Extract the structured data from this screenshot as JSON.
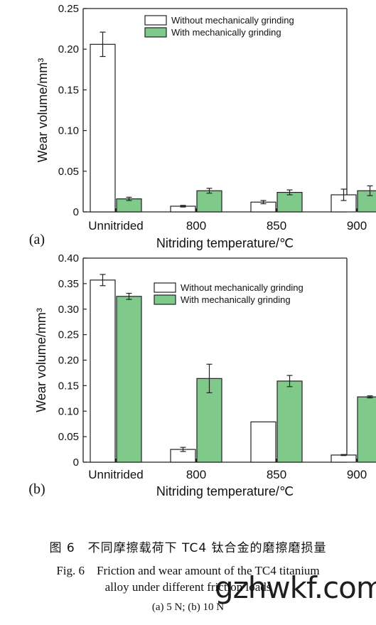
{
  "chart_data": [
    {
      "type": "bar",
      "panel": "(a)",
      "categories": [
        "Unnitrided",
        "800",
        "850",
        "900"
      ],
      "series": [
        {
          "name": "Without mechanically grinding",
          "values": [
            0.206,
            0.007,
            0.012,
            0.021
          ],
          "errors": [
            0.015,
            0.001,
            0.002,
            0.007
          ],
          "color": "#ffffff"
        },
        {
          "name": "With mechanically grinding",
          "values": [
            0.016,
            0.026,
            0.024,
            0.026
          ],
          "errors": [
            0.002,
            0.003,
            0.003,
            0.006
          ],
          "color": "#7fc98a"
        }
      ],
      "xlabel": "Nitriding temperature/℃",
      "ylabel": "Wear volume/mm³",
      "ylim": [
        0,
        0.25
      ],
      "yticks": [
        "0",
        "0.05",
        "0.10",
        "0.15",
        "0.20",
        "0.25"
      ],
      "legend": "top-right"
    },
    {
      "type": "bar",
      "panel": "(b)",
      "categories": [
        "Unnitrided",
        "800",
        "850",
        "900"
      ],
      "series": [
        {
          "name": "Without mechanically grinding",
          "values": [
            0.357,
            0.025,
            0.079,
            0.014
          ],
          "errors": [
            0.011,
            0.004,
            0,
            0.001
          ],
          "color": "#ffffff"
        },
        {
          "name": "With mechanically grinding",
          "values": [
            0.325,
            0.164,
            0.159,
            0.128
          ],
          "errors": [
            0.006,
            0.028,
            0.011,
            0.002
          ],
          "color": "#7fc98a"
        }
      ],
      "xlabel": "Nitriding temperature/℃",
      "ylabel": "Wear volume/mm³",
      "ylim": [
        0,
        0.4
      ],
      "yticks": [
        "0",
        "0.05",
        "0.10",
        "0.15",
        "0.20",
        "0.25",
        "0.30",
        "0.35",
        "0.40"
      ],
      "legend": "top-right"
    }
  ],
  "caption": {
    "cn": "图 6　不同摩擦载荷下 TC4 钛合金的磨擦磨损量",
    "en_line1": "Fig. 6　Friction and wear amount of the TC4 titanium",
    "en_line2": "alloy under different friction loads",
    "sub": "(a) 5 N;  (b) 10 N"
  },
  "watermark": "gzhwkf.com"
}
